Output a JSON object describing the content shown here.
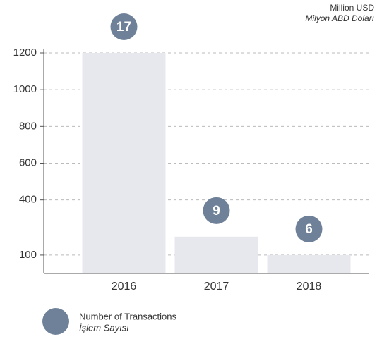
{
  "chart_data": {
    "type": "bar",
    "unit_label": "Million USD",
    "unit_label_tr": "Milyon ABD Doları",
    "categories": [
      "2016",
      "2017",
      "2018"
    ],
    "values": [
      1200,
      200,
      100
    ],
    "color": "#e6e8ed",
    "ylim": [
      0,
      1200
    ],
    "yticks": [
      100,
      400,
      600,
      800,
      1000,
      1200
    ],
    "grid": true,
    "transactions": {
      "name": "Number of Transactions",
      "name_tr": "İşlem Sayısı",
      "color": "#6e8199",
      "values": [
        17,
        9,
        6
      ]
    }
  }
}
